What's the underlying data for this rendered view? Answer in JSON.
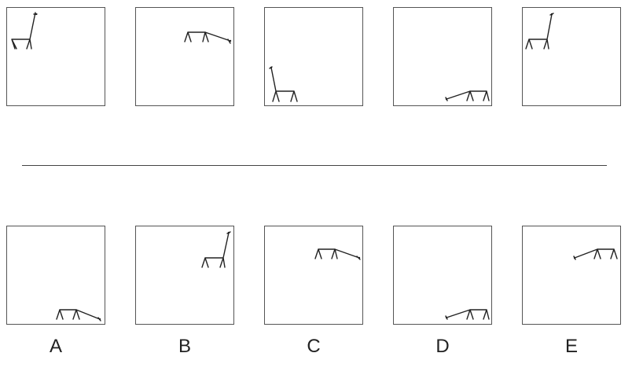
{
  "options": {
    "A": "A",
    "B": "B",
    "C": "C",
    "D": "D",
    "E": "E"
  }
}
